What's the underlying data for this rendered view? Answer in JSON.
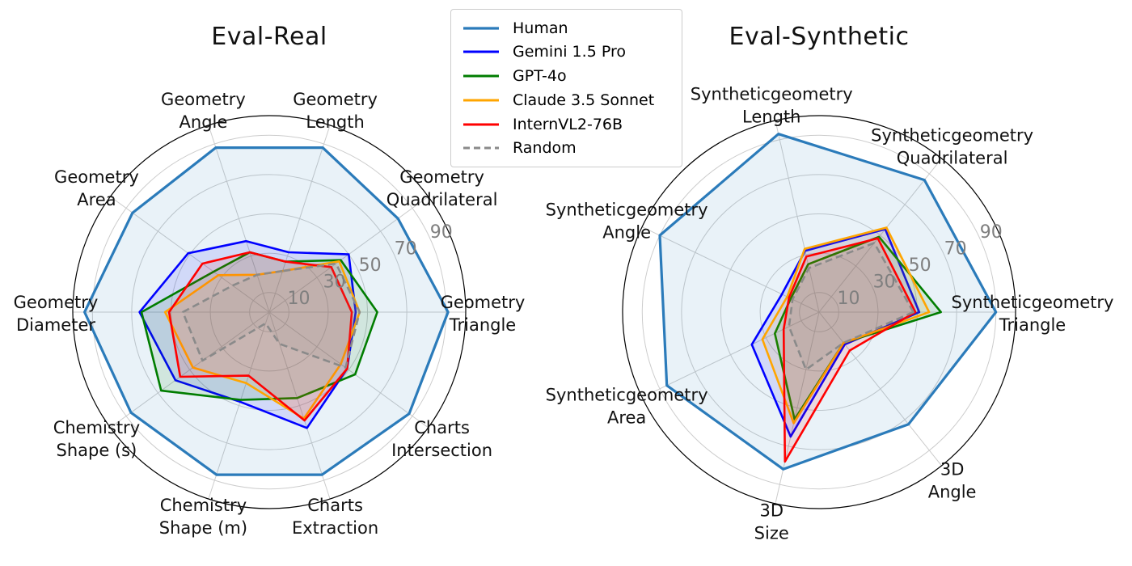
{
  "figure": {
    "left_title": "Eval-Real",
    "right_title": "Eval-Synthetic"
  },
  "legend": {
    "items": [
      {
        "label": "Human",
        "color": "#2b7bba",
        "dash": false
      },
      {
        "label": "Gemini 1.5 Pro",
        "color": "#0000ff",
        "dash": false
      },
      {
        "label": "GPT-4o",
        "color": "#007d00",
        "dash": false
      },
      {
        "label": "Claude 3.5 Sonnet",
        "color": "#ffa500",
        "dash": false
      },
      {
        "label": "InternVL2-76B",
        "color": "#ff0000",
        "dash": false
      },
      {
        "label": "Random",
        "color": "#8a8a8a",
        "dash": true
      }
    ]
  },
  "chart_data": [
    {
      "type": "radar",
      "title": "Eval-Real",
      "rmax": 100,
      "radial_ticks": [
        10,
        30,
        50,
        70,
        90
      ],
      "grid_color": "#cccccc",
      "tick_label_color": "#7f7f7f",
      "categories": [
        {
          "lines": [
            "Geometry",
            "Length"
          ],
          "angle_deg": 72
        },
        {
          "lines": [
            "Geometry",
            "Angle"
          ],
          "angle_deg": 108
        },
        {
          "lines": [
            "Geometry",
            "Area"
          ],
          "angle_deg": 144
        },
        {
          "lines": [
            "Geometry",
            "Diameter"
          ],
          "angle_deg": 180
        },
        {
          "lines": [
            "Chemistry",
            "Shape (s)"
          ],
          "angle_deg": 216
        },
        {
          "lines": [
            "Chemistry",
            "Shape (m)"
          ],
          "angle_deg": 252
        },
        {
          "lines": [
            "Charts",
            "Extraction"
          ],
          "angle_deg": 288
        },
        {
          "lines": [
            "Charts",
            "Intersection"
          ],
          "angle_deg": 324
        },
        {
          "lines": [
            "Geometry",
            "Triangle"
          ],
          "angle_deg": 0
        },
        {
          "lines": [
            "Geometry",
            "Quadrilateral"
          ],
          "angle_deg": 36
        }
      ],
      "series": [
        {
          "name": "Human",
          "color": "#2b7bba",
          "dash": false,
          "width": 3.2,
          "values": [
            88,
            88,
            86,
            94,
            87,
            87,
            87,
            88,
            91,
            81
          ]
        },
        {
          "name": "Gemini 1.5 Pro",
          "color": "#0000ff",
          "dash": false,
          "width": 2.6,
          "values": [
            32,
            38,
            51,
            66,
            59,
            48,
            62,
            49,
            44,
            50
          ]
        },
        {
          "name": "GPT-4o",
          "color": "#007d00",
          "dash": false,
          "width": 2.6,
          "values": [
            27,
            32,
            35,
            65,
            68,
            47,
            46,
            54,
            55,
            45
          ]
        },
        {
          "name": "Claude 3.5 Sonnet",
          "color": "#ffa500",
          "dash": false,
          "width": 2.6,
          "values": [
            22,
            20,
            32,
            53,
            48,
            38,
            57,
            45,
            46,
            44
          ]
        },
        {
          "name": "InternVL2-76B",
          "color": "#ff0000",
          "dash": false,
          "width": 2.6,
          "values": [
            27,
            32,
            42,
            51,
            56,
            34,
            58,
            49,
            42,
            39
          ]
        },
        {
          "name": "Random",
          "color": "#8a8a8a",
          "dash": true,
          "width": 2.6,
          "values": [
            22,
            20,
            23,
            44,
            42,
            6,
            17,
            48,
            46,
            42
          ]
        }
      ]
    },
    {
      "type": "radar",
      "title": "Eval-Synthetic",
      "rmax": 100,
      "radial_ticks": [
        10,
        30,
        50,
        70,
        90
      ],
      "grid_color": "#cccccc",
      "tick_label_color": "#7f7f7f",
      "categories": [
        {
          "lines": [
            "Syntheticgeometry",
            "Triangle"
          ],
          "angle_deg": 0
        },
        {
          "lines": [
            "Syntheticgeometry",
            "Quadrilateral"
          ],
          "angle_deg": 51.43
        },
        {
          "lines": [
            "Syntheticgeometry",
            "Length"
          ],
          "angle_deg": 102.86
        },
        {
          "lines": [
            "Syntheticgeometry",
            "Angle"
          ],
          "angle_deg": 154.29
        },
        {
          "lines": [
            "Syntheticgeometry",
            "Area"
          ],
          "angle_deg": 205.71
        },
        {
          "lines": [
            "3D",
            "Size"
          ],
          "angle_deg": 257.14
        },
        {
          "lines": [
            "3D",
            "Angle"
          ],
          "angle_deg": 308.57
        }
      ],
      "series": [
        {
          "name": "Human",
          "color": "#2b7bba",
          "dash": false,
          "width": 3.2,
          "values": [
            90,
            86,
            93,
            90,
            86,
            82,
            73
          ]
        },
        {
          "name": "Gemini 1.5 Pro",
          "color": "#0000ff",
          "dash": false,
          "width": 2.6,
          "values": [
            51,
            54,
            32,
            21,
            38,
            65,
            21
          ]
        },
        {
          "name": "GPT-4o",
          "color": "#007d00",
          "dash": false,
          "width": 2.6,
          "values": [
            62,
            49,
            25,
            16,
            25,
            56,
            20
          ]
        },
        {
          "name": "Claude 3.5 Sonnet",
          "color": "#ffa500",
          "dash": false,
          "width": 2.6,
          "values": [
            56,
            55,
            33,
            18,
            32,
            58,
            20
          ]
        },
        {
          "name": "InternVL2-76B",
          "color": "#ff0000",
          "dash": false,
          "width": 2.6,
          "values": [
            49,
            48,
            29,
            17,
            20,
            78,
            25
          ]
        },
        {
          "name": "Random",
          "color": "#8a8a8a",
          "dash": true,
          "width": 2.6,
          "values": [
            48,
            45,
            23,
            15,
            17,
            30,
            20
          ]
        }
      ]
    }
  ]
}
